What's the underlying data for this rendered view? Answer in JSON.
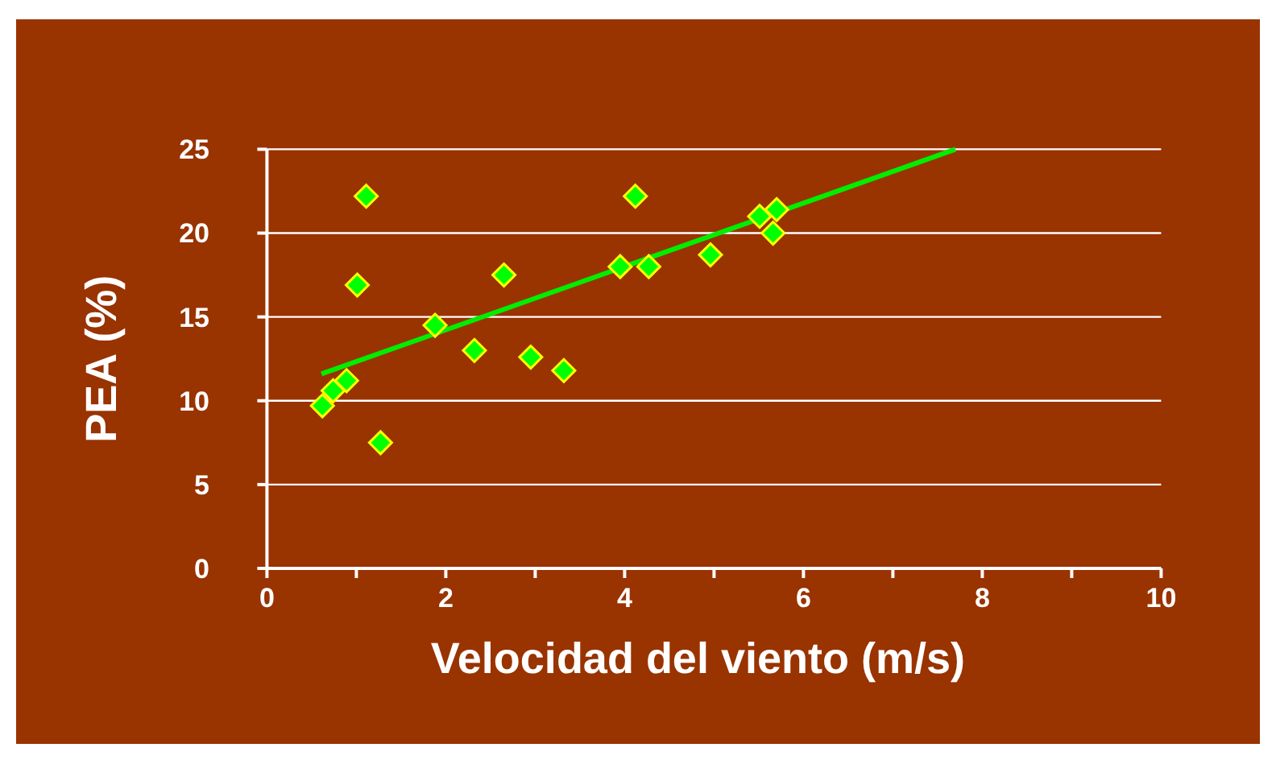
{
  "chart_data": {
    "type": "scatter",
    "xlabel": "Velocidad del viento (m/s)",
    "ylabel": "PEA (%)",
    "xlim": [
      0,
      10
    ],
    "ylim": [
      0,
      25
    ],
    "xticks": [
      0,
      {
        "value": 1,
        "label": null
      },
      2,
      {
        "value": 3,
        "label": null
      },
      4,
      {
        "value": 5,
        "label": null
      },
      6,
      {
        "value": 7,
        "label": null
      },
      8,
      {
        "value": 9,
        "label": null
      },
      10
    ],
    "yticks": [
      0,
      5,
      10,
      15,
      20,
      25
    ],
    "grid": "y",
    "marker": "diamond",
    "series": [
      {
        "color": "#00ff00",
        "x": [
          0.62,
          0.74,
          0.89,
          1.01,
          1.11,
          1.27,
          1.88,
          2.32,
          2.65,
          2.95,
          3.32,
          3.95,
          4.12,
          4.27,
          4.96,
          5.51,
          5.7,
          5.66
        ],
        "values": [
          9.7,
          10.6,
          11.2,
          16.9,
          22.2,
          7.5,
          14.5,
          13.0,
          17.5,
          12.6,
          11.8,
          18.0,
          22.2,
          18.0,
          18.7,
          21.0,
          21.4,
          20.0
        ]
      },
      {
        "type": "line",
        "color": "#00ee00",
        "x": [
          0.61,
          7.7
        ],
        "values": [
          11.6,
          25.0
        ],
        "marker": "none",
        "line_style": "solid"
      }
    ]
  }
}
